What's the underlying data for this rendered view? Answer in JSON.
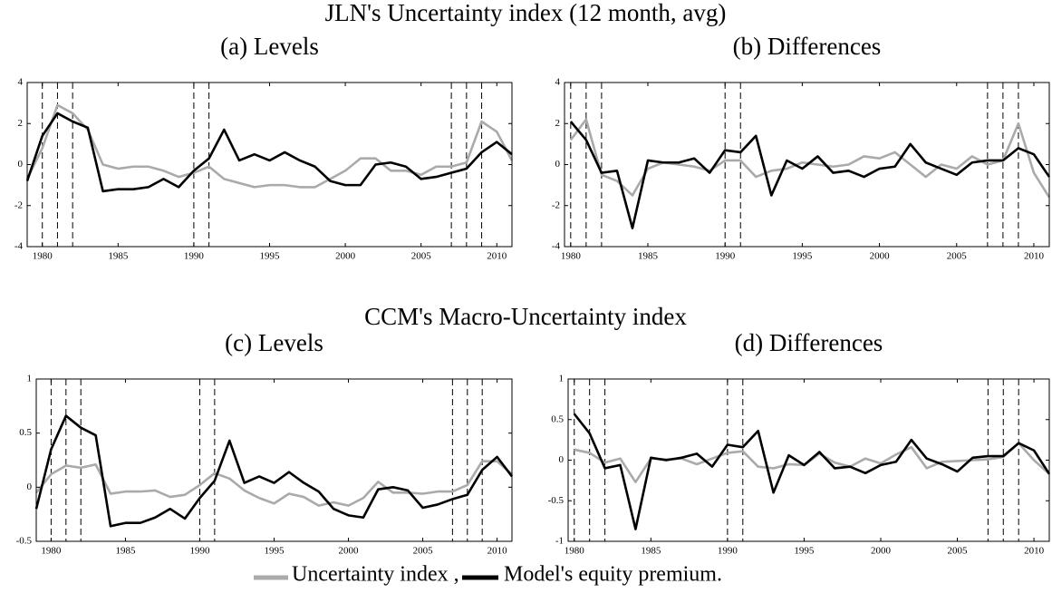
{
  "groups": [
    {
      "title": "JLN's Uncertainty index (12 month, avg)"
    },
    {
      "title": "CCM's Macro-Uncertainty index"
    }
  ],
  "chart_data": [
    {
      "type": "line",
      "title": "(a) Levels",
      "x": [
        1979,
        1980,
        1981,
        1982,
        1983,
        1984,
        1985,
        1986,
        1987,
        1988,
        1989,
        1990,
        1991,
        1992,
        1993,
        1994,
        1995,
        1996,
        1997,
        1998,
        1999,
        2000,
        2001,
        2002,
        2003,
        2004,
        2005,
        2006,
        2007,
        2008,
        2009,
        2010,
        2011
      ],
      "xlim": [
        1979,
        2011
      ],
      "ylim": [
        -4,
        4
      ],
      "xticks": [
        1980,
        1985,
        1990,
        1995,
        2000,
        2005,
        2010
      ],
      "yticks": [
        -4,
        -2,
        0,
        2,
        4
      ],
      "vlines": [
        1980,
        1981,
        1982,
        1990,
        1991,
        2007,
        2008,
        2009
      ],
      "series": [
        {
          "name": "Uncertainty index ,",
          "color": "#aaaaaa",
          "values": [
            -0.7,
            0.8,
            2.9,
            2.5,
            1.7,
            0.0,
            -0.2,
            -0.1,
            -0.1,
            -0.3,
            -0.6,
            -0.4,
            -0.1,
            -0.7,
            -0.9,
            -1.1,
            -1.0,
            -1.0,
            -1.1,
            -1.1,
            -0.7,
            -0.3,
            0.3,
            0.3,
            -0.3,
            -0.3,
            -0.5,
            -0.1,
            -0.1,
            0.1,
            2.1,
            1.6,
            0.2
          ]
        },
        {
          "name": "Model's equity premium.",
          "color": "#000000",
          "values": [
            -0.8,
            1.4,
            2.5,
            2.1,
            1.8,
            -1.3,
            -1.2,
            -1.2,
            -1.1,
            -0.7,
            -1.1,
            -0.3,
            0.3,
            1.7,
            0.2,
            0.5,
            0.2,
            0.6,
            0.2,
            -0.1,
            -0.8,
            -1.0,
            -1.0,
            0.0,
            0.1,
            -0.1,
            -0.7,
            -0.6,
            -0.4,
            -0.2,
            0.6,
            1.1,
            0.5
          ]
        }
      ]
    },
    {
      "type": "line",
      "title": "(b) Differences",
      "x": [
        1980,
        1981,
        1982,
        1983,
        1984,
        1985,
        1986,
        1987,
        1988,
        1989,
        1990,
        1991,
        1992,
        1993,
        1994,
        1995,
        1996,
        1997,
        1998,
        1999,
        2000,
        2001,
        2002,
        2003,
        2004,
        2005,
        2006,
        2007,
        2008,
        2009,
        2010,
        2011
      ],
      "xlim": [
        1979.6,
        2011
      ],
      "ylim": [
        -4,
        4
      ],
      "xticks": [
        1980,
        1985,
        1990,
        1995,
        2000,
        2005,
        2010
      ],
      "yticks": [
        -4,
        -2,
        0,
        2,
        4
      ],
      "vlines": [
        1980,
        1981,
        1982,
        1990,
        1991,
        2007,
        2008,
        2009
      ],
      "series": [
        {
          "color": "#aaaaaa",
          "values": [
            1.2,
            2.2,
            -0.5,
            -0.8,
            -1.5,
            -0.2,
            0.1,
            0.0,
            -0.1,
            -0.3,
            0.2,
            0.2,
            -0.6,
            -0.3,
            -0.2,
            0.1,
            0.0,
            -0.1,
            0.0,
            0.4,
            0.3,
            0.6,
            0.0,
            -0.6,
            0.0,
            -0.2,
            0.4,
            0.0,
            0.2,
            2.0,
            -0.4,
            -1.6
          ]
        },
        {
          "color": "#000000",
          "values": [
            2.1,
            1.2,
            -0.4,
            -0.3,
            -3.1,
            0.2,
            0.1,
            0.1,
            0.3,
            -0.4,
            0.7,
            0.6,
            1.4,
            -1.5,
            0.2,
            -0.2,
            0.4,
            -0.4,
            -0.3,
            -0.6,
            -0.2,
            -0.1,
            1.0,
            0.1,
            -0.2,
            -0.5,
            0.1,
            0.2,
            0.2,
            0.8,
            0.5,
            -0.6
          ]
        }
      ]
    },
    {
      "type": "line",
      "title": "(c) Levels",
      "x": [
        1979,
        1980,
        1981,
        1982,
        1983,
        1984,
        1985,
        1986,
        1987,
        1988,
        1989,
        1990,
        1991,
        1992,
        1993,
        1994,
        1995,
        1996,
        1997,
        1998,
        1999,
        2000,
        2001,
        2002,
        2003,
        2004,
        2005,
        2006,
        2007,
        2008,
        2009,
        2010,
        2011
      ],
      "xlim": [
        1979,
        2011
      ],
      "ylim": [
        -0.5,
        1
      ],
      "xticks": [
        1980,
        1985,
        1990,
        1995,
        2000,
        2005,
        2010
      ],
      "yticks": [
        -0.5,
        0,
        0.5,
        1
      ],
      "vlines": [
        1980,
        1981,
        1982,
        1990,
        1991,
        2007,
        2008,
        2009
      ],
      "series": [
        {
          "color": "#aaaaaa",
          "values": [
            -0.05,
            0.12,
            0.2,
            0.18,
            0.21,
            -0.06,
            -0.04,
            -0.04,
            -0.03,
            -0.09,
            -0.07,
            0.02,
            0.13,
            0.08,
            -0.03,
            -0.1,
            -0.15,
            -0.06,
            -0.09,
            -0.17,
            -0.14,
            -0.17,
            -0.1,
            0.05,
            -0.05,
            -0.05,
            -0.06,
            -0.04,
            -0.04,
            0.02,
            0.24,
            0.24,
            0.12
          ]
        },
        {
          "color": "#000000",
          "values": [
            -0.2,
            0.35,
            0.66,
            0.55,
            0.48,
            -0.36,
            -0.33,
            -0.33,
            -0.28,
            -0.2,
            -0.29,
            -0.1,
            0.06,
            0.43,
            0.04,
            0.1,
            0.04,
            0.14,
            0.04,
            -0.04,
            -0.2,
            -0.26,
            -0.28,
            -0.02,
            0.0,
            -0.03,
            -0.19,
            -0.16,
            -0.11,
            -0.07,
            0.16,
            0.28,
            0.1
          ]
        }
      ]
    },
    {
      "type": "line",
      "title": "(d) Differences",
      "x": [
        1980,
        1981,
        1982,
        1983,
        1984,
        1985,
        1986,
        1987,
        1988,
        1989,
        1990,
        1991,
        1992,
        1993,
        1994,
        1995,
        1996,
        1997,
        1998,
        1999,
        2000,
        2001,
        2002,
        2003,
        2004,
        2005,
        2006,
        2007,
        2008,
        2009,
        2010,
        2011
      ],
      "xlim": [
        1979.6,
        2011
      ],
      "ylim": [
        -1,
        1
      ],
      "xticks": [
        1980,
        1985,
        1990,
        1995,
        2000,
        2005,
        2010
      ],
      "yticks": [
        -1,
        -0.5,
        0,
        0.5,
        1
      ],
      "vlines": [
        1980,
        1981,
        1982,
        1990,
        1991,
        2007,
        2008,
        2009
      ],
      "series": [
        {
          "color": "#aaaaaa",
          "values": [
            0.13,
            0.09,
            -0.03,
            0.02,
            -0.27,
            0.02,
            0.01,
            0.02,
            -0.05,
            0.02,
            0.09,
            0.11,
            -0.08,
            -0.1,
            -0.05,
            -0.06,
            0.08,
            -0.03,
            -0.08,
            0.02,
            -0.04,
            0.07,
            0.16,
            -0.1,
            -0.02,
            -0.01,
            0.0,
            0.01,
            0.04,
            0.21,
            0.0,
            -0.17
          ]
        },
        {
          "color": "#000000",
          "values": [
            0.57,
            0.33,
            -0.1,
            -0.06,
            -0.85,
            0.03,
            0.0,
            0.03,
            0.08,
            -0.08,
            0.19,
            0.16,
            0.36,
            -0.4,
            0.06,
            -0.06,
            0.1,
            -0.1,
            -0.08,
            -0.16,
            -0.06,
            -0.02,
            0.25,
            0.02,
            -0.05,
            -0.14,
            0.03,
            0.05,
            0.05,
            0.21,
            0.12,
            -0.17
          ]
        }
      ]
    }
  ]
}
